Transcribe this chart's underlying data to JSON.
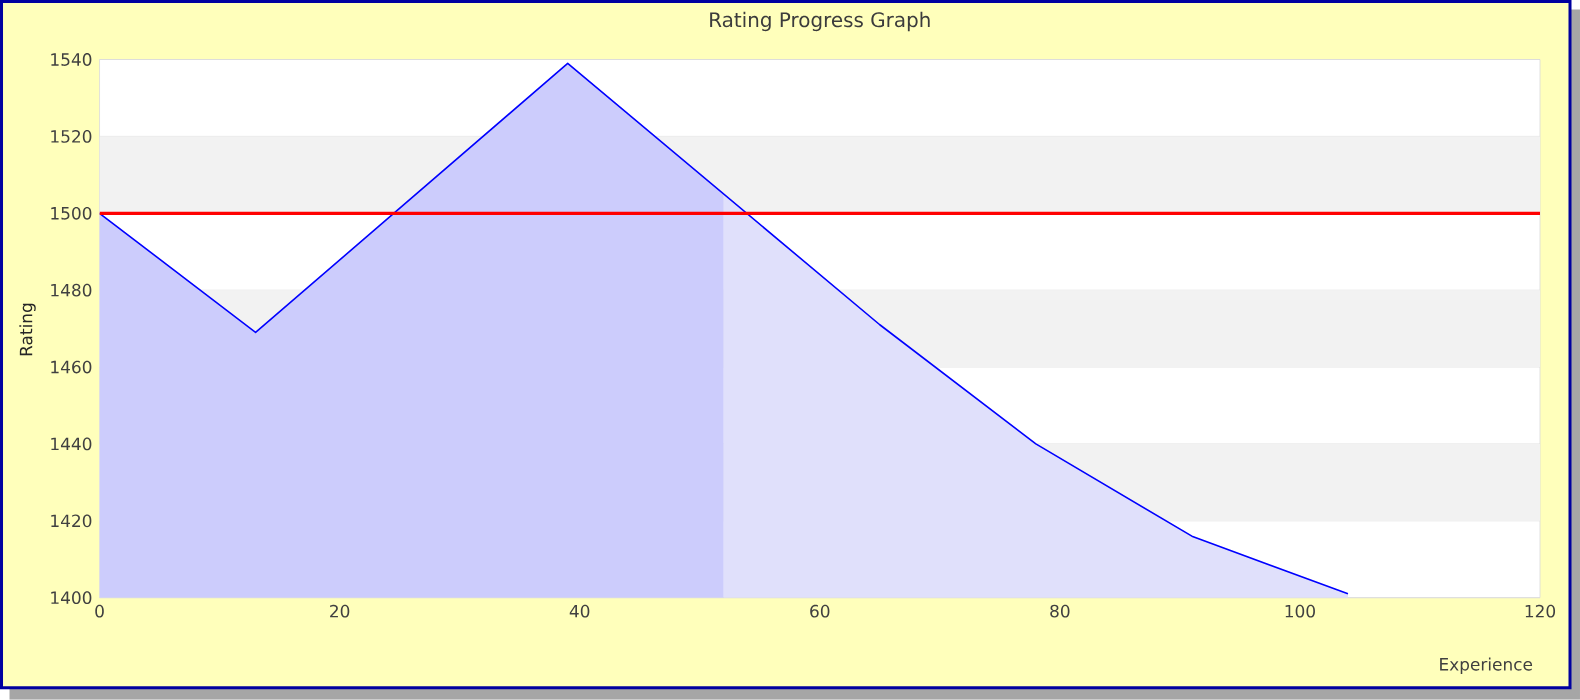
{
  "chart_data": {
    "type": "area",
    "title": "Rating Progress Graph",
    "xlabel": "Experience",
    "ylabel": "Rating",
    "series": [
      {
        "color": "#ccccfc",
        "x": [
          0,
          13,
          39,
          52
        ],
        "values": [
          1500,
          1469,
          1539,
          1505
        ]
      },
      {
        "color": "#e0e0fb",
        "x": [
          52,
          65,
          78,
          91,
          104
        ],
        "values": [
          1505,
          1471,
          1440,
          1416,
          1401
        ]
      },
      {
        "type": "line",
        "color": "#0000ff",
        "x": [
          0,
          13,
          39,
          65,
          78,
          91,
          104
        ],
        "values": [
          1500,
          1469,
          1539,
          1471,
          1440,
          1416,
          1401
        ]
      }
    ],
    "ref_lines": [
      {
        "axis": "y",
        "value": 1500,
        "color": "#ff0000"
      }
    ],
    "xlim": [
      0,
      120
    ],
    "xticks": [
      0,
      20,
      40,
      60,
      80,
      100,
      120
    ],
    "ylim": [
      1400,
      1540
    ],
    "yticks": [
      1400,
      1420,
      1440,
      1460,
      1480,
      1500,
      1520,
      1540
    ],
    "grid": "y"
  }
}
